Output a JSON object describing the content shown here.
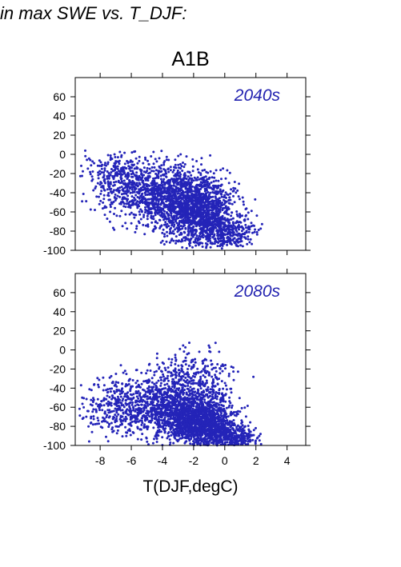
{
  "header": {
    "text": "in max SWE vs. T_DJF:"
  },
  "figure": {
    "scenario_title": "A1B",
    "xlabel": "T(DJF,degC)"
  },
  "colors": {
    "points": "#2424b8",
    "panel_label": "#2323b0",
    "axes": "#000000"
  },
  "chart_data": [
    {
      "type": "scatter",
      "panel_label": "2040s",
      "title": "A1B",
      "xlabel": "",
      "ylabel": "",
      "xlim": [
        -9.6,
        5.2
      ],
      "ylim": [
        -100,
        80
      ],
      "xticks": [
        -8,
        -6,
        -4,
        -2,
        0,
        2,
        4
      ],
      "yticks": [
        60,
        40,
        20,
        0,
        -20,
        -40,
        -60,
        -80,
        -100
      ],
      "xtick_labels_shown": false,
      "grid": false,
      "clusters": [
        {
          "x_center": -3.8,
          "x_spread": 1.6,
          "y_center": -42,
          "y_spread": 17,
          "count": 1100
        },
        {
          "x_center": -1.6,
          "x_spread": 1.1,
          "y_center": -62,
          "y_spread": 17,
          "count": 1200
        },
        {
          "x_center": -6.8,
          "x_spread": 1.2,
          "y_center": -25,
          "y_spread": 14,
          "count": 320
        },
        {
          "x_center": 0.4,
          "x_spread": 0.8,
          "y_center": -82,
          "y_spread": 10,
          "count": 280
        }
      ],
      "xrange": [
        -9.4,
        2.4
      ],
      "yrange": [
        -98,
        4
      ],
      "seed": 20400
    },
    {
      "type": "scatter",
      "panel_label": "2080s",
      "xlabel": "T(DJF,degC)",
      "ylabel": "",
      "xlim": [
        -9.6,
        5.2
      ],
      "ylim": [
        -100,
        80
      ],
      "xticks": [
        -8,
        -6,
        -4,
        -2,
        0,
        2,
        4
      ],
      "yticks": [
        60,
        40,
        20,
        0,
        -20,
        -40,
        -60,
        -80,
        -100
      ],
      "xtick_labels_shown": true,
      "grid": false,
      "clusters": [
        {
          "x_center": -3.2,
          "x_spread": 1.7,
          "y_center": -62,
          "y_spread": 16,
          "count": 1100
        },
        {
          "x_center": -1.4,
          "x_spread": 1.0,
          "y_center": -78,
          "y_spread": 12,
          "count": 1150
        },
        {
          "x_center": -2.0,
          "x_spread": 1.3,
          "y_center": -30,
          "y_spread": 15,
          "count": 320
        },
        {
          "x_center": -6.6,
          "x_spread": 1.4,
          "y_center": -55,
          "y_spread": 16,
          "count": 380
        },
        {
          "x_center": 0.6,
          "x_spread": 0.8,
          "y_center": -92,
          "y_spread": 6,
          "count": 300
        }
      ],
      "xrange": [
        -9.4,
        2.4
      ],
      "yrange": [
        -100,
        10
      ],
      "seed": 20800
    }
  ]
}
